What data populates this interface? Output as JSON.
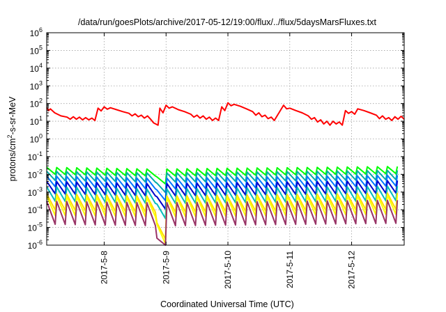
{
  "chart_data": {
    "type": "line",
    "title": "/data/run/goesPlots/archive/2017-05-12/19:00/flux/../flux/5daysMarsFluxes.txt",
    "xlabel": "Coordinated Universal Time (UTC)",
    "ylabel": "protons/cm²-s-sr-MeV",
    "ylabel_main": "protons/cm",
    "ylabel_sup": "2",
    "ylabel_rest": "-s-sr-MeV",
    "yscale": "log",
    "ylim": [
      1e-06,
      1000000.0
    ],
    "xlim": [
      7.07,
      12.85
    ],
    "y_ticks": [
      {
        "value": -6,
        "base": "10",
        "exp": "-6"
      },
      {
        "value": -5,
        "base": "10",
        "exp": "-5"
      },
      {
        "value": -4,
        "base": "10",
        "exp": "-4"
      },
      {
        "value": -3,
        "base": "10",
        "exp": "-3"
      },
      {
        "value": -2,
        "base": "10",
        "exp": "-2"
      },
      {
        "value": -1,
        "base": "10",
        "exp": "-1"
      },
      {
        "value": 0,
        "base": "10",
        "exp": "0"
      },
      {
        "value": 1,
        "base": "10",
        "exp": "1"
      },
      {
        "value": 2,
        "base": "10",
        "exp": "2"
      },
      {
        "value": 3,
        "base": "10",
        "exp": "3"
      },
      {
        "value": 4,
        "base": "10",
        "exp": "4"
      },
      {
        "value": 5,
        "base": "10",
        "exp": "5"
      },
      {
        "value": 6,
        "base": "10",
        "exp": "6"
      }
    ],
    "x_ticks": [
      {
        "value": 8,
        "label": "2017-5-8"
      },
      {
        "value": 9,
        "label": "2017-5-9"
      },
      {
        "value": 10,
        "label": "2017-5-10"
      },
      {
        "value": 11,
        "label": "2017-5-11"
      },
      {
        "value": 12,
        "label": "2017-5-12"
      }
    ],
    "grid": true,
    "series": [
      {
        "color": "#ff0000",
        "values": [
          [
            7.07,
            60
          ],
          [
            7.1,
            40
          ],
          [
            7.13,
            50
          ],
          [
            7.2,
            30
          ],
          [
            7.3,
            20
          ],
          [
            7.4,
            17
          ],
          [
            7.45,
            13
          ],
          [
            7.5,
            18
          ],
          [
            7.55,
            13
          ],
          [
            7.6,
            17
          ],
          [
            7.65,
            12
          ],
          [
            7.7,
            16
          ],
          [
            7.75,
            12
          ],
          [
            7.8,
            15
          ],
          [
            7.85,
            11
          ],
          [
            7.9,
            55
          ],
          [
            7.95,
            38
          ],
          [
            8.0,
            65
          ],
          [
            8.05,
            48
          ],
          [
            8.1,
            58
          ],
          [
            8.2,
            45
          ],
          [
            8.3,
            35
          ],
          [
            8.4,
            28
          ],
          [
            8.45,
            20
          ],
          [
            8.5,
            26
          ],
          [
            8.55,
            18
          ],
          [
            8.6,
            22
          ],
          [
            8.65,
            15
          ],
          [
            8.7,
            20
          ],
          [
            8.75,
            13
          ],
          [
            8.8,
            8
          ],
          [
            8.87,
            6
          ],
          [
            8.9,
            55
          ],
          [
            8.95,
            30
          ],
          [
            9.0,
            80
          ],
          [
            9.05,
            55
          ],
          [
            9.1,
            65
          ],
          [
            9.2,
            45
          ],
          [
            9.3,
            35
          ],
          [
            9.4,
            25
          ],
          [
            9.45,
            17
          ],
          [
            9.5,
            22
          ],
          [
            9.55,
            15
          ],
          [
            9.6,
            20
          ],
          [
            9.65,
            13
          ],
          [
            9.7,
            17
          ],
          [
            9.75,
            11
          ],
          [
            9.8,
            15
          ],
          [
            9.85,
            11
          ],
          [
            9.9,
            65
          ],
          [
            9.95,
            40
          ],
          [
            10.0,
            110
          ],
          [
            10.05,
            75
          ],
          [
            10.1,
            90
          ],
          [
            10.2,
            70
          ],
          [
            10.3,
            50
          ],
          [
            10.4,
            35
          ],
          [
            10.45,
            22
          ],
          [
            10.5,
            30
          ],
          [
            10.55,
            18
          ],
          [
            10.6,
            22
          ],
          [
            10.65,
            14
          ],
          [
            10.7,
            17
          ],
          [
            10.75,
            11
          ],
          [
            10.9,
            80
          ],
          [
            10.95,
            50
          ],
          [
            11.0,
            55
          ],
          [
            11.1,
            40
          ],
          [
            11.2,
            30
          ],
          [
            11.3,
            20
          ],
          [
            11.35,
            13
          ],
          [
            11.4,
            16
          ],
          [
            11.45,
            9
          ],
          [
            11.5,
            12
          ],
          [
            11.55,
            7
          ],
          [
            11.6,
            10
          ],
          [
            11.65,
            6
          ],
          [
            11.7,
            10
          ],
          [
            11.75,
            7
          ],
          [
            11.8,
            9
          ],
          [
            11.85,
            6
          ],
          [
            11.9,
            40
          ],
          [
            11.95,
            28
          ],
          [
            12.0,
            35
          ],
          [
            12.05,
            25
          ],
          [
            12.1,
            50
          ],
          [
            12.2,
            40
          ],
          [
            12.3,
            30
          ],
          [
            12.4,
            22
          ],
          [
            12.45,
            14
          ],
          [
            12.5,
            20
          ],
          [
            12.55,
            13
          ],
          [
            12.6,
            16
          ],
          [
            12.65,
            11
          ],
          [
            12.7,
            18
          ],
          [
            12.75,
            13
          ],
          [
            12.8,
            19
          ],
          [
            12.85,
            13
          ]
        ]
      },
      {
        "color": "#00ff00",
        "cycle": 0.162,
        "base": [
          [
            7.07,
            0.025
          ],
          [
            8.75,
            0.02
          ],
          [
            8.87,
            0.006
          ],
          [
            8.95,
            0.02
          ],
          [
            12.85,
            0.028
          ]
        ],
        "dip": 0.4
      },
      {
        "color": "#00aaaa",
        "cycle": 0.162,
        "base": [
          [
            7.07,
            0.015
          ],
          [
            8.75,
            0.012
          ],
          [
            8.87,
            0.0025
          ],
          [
            8.95,
            0.012
          ],
          [
            12.85,
            0.017
          ]
        ],
        "dip": 0.3
      },
      {
        "color": "#0077ff",
        "cycle": 0.162,
        "base": [
          [
            7.07,
            0.008
          ],
          [
            8.75,
            0.006
          ],
          [
            8.87,
            0.001
          ],
          [
            8.95,
            0.006
          ],
          [
            12.85,
            0.009
          ]
        ],
        "dip": 0.25
      },
      {
        "color": "#0000cc",
        "cycle": 0.162,
        "base": [
          [
            7.07,
            0.004
          ],
          [
            8.75,
            0.003
          ],
          [
            8.87,
            0.0004
          ],
          [
            8.95,
            0.003
          ],
          [
            12.85,
            0.0045
          ]
        ],
        "dip": 0.2
      },
      {
        "color": "#00bbbb",
        "cycle": 0.162,
        "base": [
          [
            7.07,
            0.002
          ],
          [
            8.75,
            0.0015
          ],
          [
            8.87,
            0.00015
          ],
          [
            8.95,
            0.0015
          ],
          [
            12.85,
            0.0022
          ]
        ],
        "dip": 0.15
      },
      {
        "color": "#ffdd00",
        "cycle": 0.162,
        "base": [
          [
            7.07,
            0.0008
          ],
          [
            8.75,
            0.0006
          ],
          [
            8.87,
            1e-05
          ],
          [
            8.95,
            0.0006
          ],
          [
            12.85,
            0.0009
          ]
        ],
        "dip": 0.12
      },
      {
        "color": "#ffff00",
        "cycle": 0.162,
        "base": [
          [
            7.07,
            0.0006
          ],
          [
            8.75,
            0.0005
          ],
          [
            8.87,
            8e-06
          ],
          [
            8.95,
            0.0005
          ],
          [
            12.85,
            0.0007
          ]
        ],
        "dip": 0.08
      },
      {
        "color": "#993366",
        "cycle": 0.162,
        "base": [
          [
            7.07,
            0.0003
          ],
          [
            8.75,
            0.00025
          ],
          [
            8.87,
            1.1e-06
          ],
          [
            8.95,
            0.00025
          ],
          [
            12.85,
            0.00035
          ]
        ],
        "dip": 0.05
      }
    ]
  }
}
